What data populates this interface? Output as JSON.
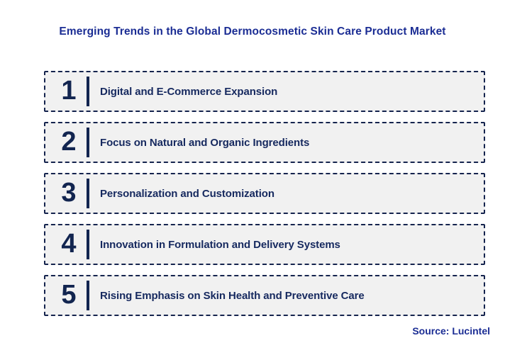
{
  "title": "Emerging Trends in the Global Dermocosmetic Skin Care Product Market",
  "source": "Source: Lucintel",
  "colors": {
    "title_text": "#1b2d94",
    "item_text": "#16295f",
    "number_text": "#122550",
    "divider_bar": "#122550",
    "row_background": "#f1f1f1",
    "row_border": "#15244e",
    "source_text": "#1b2d94",
    "page_background": "#ffffff"
  },
  "trends": [
    {
      "number": "1",
      "label": "Digital and E-Commerce Expansion"
    },
    {
      "number": "2",
      "label": "Focus on Natural and Organic Ingredients"
    },
    {
      "number": "3",
      "label": "Personalization and Customization"
    },
    {
      "number": "4",
      "label": "Innovation in Formulation and Delivery Systems"
    },
    {
      "number": "5",
      "label": "Rising Emphasis on Skin Health and Preventive Care"
    }
  ]
}
